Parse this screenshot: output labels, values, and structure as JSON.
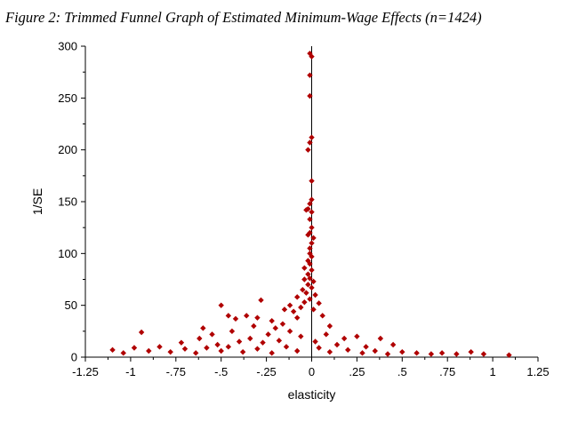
{
  "chart_data": {
    "type": "scatter",
    "title": "Figure 2: Trimmed Funnel Graph of Estimated Minimum-Wage Effects (n=1424)",
    "xlabel": "elasticity",
    "ylabel": "1/SE",
    "xlim": [
      -1.25,
      1.25
    ],
    "ylim": [
      0,
      300
    ],
    "x_ticks": [
      -1.25,
      -1,
      -0.75,
      -0.5,
      -0.25,
      0,
      0.25,
      0.5,
      0.75,
      1,
      1.25
    ],
    "x_tick_labels": [
      "-1.25",
      "-1",
      "-.75",
      "-.5",
      "-.25",
      "0",
      ".25",
      ".5",
      ".75",
      "1",
      "1.25"
    ],
    "y_ticks": [
      0,
      50,
      100,
      150,
      200,
      250,
      300
    ],
    "y_tick_labels": [
      "0",
      "50",
      "100",
      "150",
      "200",
      "250",
      "300"
    ],
    "reference_line_x": 0,
    "marker": "diamond",
    "color": "#b00000",
    "grid": false,
    "legend": "none",
    "points": [
      [
        -0.01,
        293
      ],
      [
        0.0,
        290
      ],
      [
        -0.01,
        272
      ],
      [
        -0.01,
        252
      ],
      [
        0.0,
        212
      ],
      [
        -0.01,
        207
      ],
      [
        -0.02,
        200
      ],
      [
        0.0,
        170
      ],
      [
        0.0,
        152
      ],
      [
        -0.01,
        148
      ],
      [
        -0.02,
        143
      ],
      [
        0.0,
        140
      ],
      [
        -0.01,
        133
      ],
      [
        -0.03,
        142
      ],
      [
        0.0,
        125
      ],
      [
        -0.01,
        120
      ],
      [
        -0.02,
        118
      ],
      [
        0.01,
        115
      ],
      [
        0.0,
        110
      ],
      [
        -0.01,
        105
      ],
      [
        -0.01,
        100
      ],
      [
        0.0,
        97
      ],
      [
        -0.02,
        93
      ],
      [
        -0.01,
        90
      ],
      [
        -0.04,
        86
      ],
      [
        0.0,
        84
      ],
      [
        -0.02,
        80
      ],
      [
        -0.01,
        76
      ],
      [
        -0.04,
        75
      ],
      [
        0.01,
        73
      ],
      [
        -0.02,
        70
      ],
      [
        0.0,
        67
      ],
      [
        -0.05,
        65
      ],
      [
        -0.03,
        62
      ],
      [
        0.02,
        60
      ],
      [
        -0.08,
        58
      ],
      [
        -0.01,
        56
      ],
      [
        -0.04,
        53
      ],
      [
        0.04,
        52
      ],
      [
        -0.12,
        50
      ],
      [
        -0.06,
        48
      ],
      [
        0.01,
        46
      ],
      [
        -0.15,
        46
      ],
      [
        -0.28,
        55
      ],
      [
        -0.5,
        50
      ],
      [
        -0.46,
        40
      ],
      [
        -0.42,
        37
      ],
      [
        -0.36,
        40
      ],
      [
        -0.3,
        38
      ],
      [
        -0.22,
        35
      ],
      [
        -0.1,
        44
      ],
      [
        -0.2,
        28
      ],
      [
        -0.16,
        32
      ],
      [
        -0.08,
        38
      ],
      [
        0.06,
        40
      ],
      [
        0.1,
        30
      ],
      [
        -0.6,
        28
      ],
      [
        -0.55,
        22
      ],
      [
        -0.44,
        25
      ],
      [
        -0.32,
        30
      ],
      [
        -0.24,
        22
      ],
      [
        -0.12,
        25
      ],
      [
        0.08,
        22
      ],
      [
        0.18,
        18
      ],
      [
        0.25,
        20
      ],
      [
        0.38,
        18
      ],
      [
        -0.94,
        24
      ],
      [
        -0.72,
        14
      ],
      [
        -0.62,
        18
      ],
      [
        -0.52,
        12
      ],
      [
        -0.4,
        15
      ],
      [
        -0.34,
        18
      ],
      [
        -0.27,
        14
      ],
      [
        -0.18,
        16
      ],
      [
        -0.06,
        20
      ],
      [
        0.02,
        15
      ],
      [
        0.14,
        12
      ],
      [
        0.3,
        10
      ],
      [
        0.45,
        12
      ],
      [
        -1.1,
        7
      ],
      [
        -1.04,
        4
      ],
      [
        -0.98,
        9
      ],
      [
        -0.9,
        6
      ],
      [
        -0.84,
        10
      ],
      [
        -0.78,
        5
      ],
      [
        -0.7,
        8
      ],
      [
        -0.64,
        4
      ],
      [
        -0.58,
        9
      ],
      [
        -0.5,
        6
      ],
      [
        -0.46,
        10
      ],
      [
        -0.38,
        5
      ],
      [
        -0.3,
        8
      ],
      [
        -0.22,
        4
      ],
      [
        -0.14,
        10
      ],
      [
        -0.08,
        6
      ],
      [
        0.04,
        9
      ],
      [
        0.1,
        5
      ],
      [
        0.2,
        7
      ],
      [
        0.28,
        4
      ],
      [
        0.35,
        6
      ],
      [
        0.42,
        3
      ],
      [
        0.5,
        5
      ],
      [
        0.58,
        4
      ],
      [
        0.66,
        3
      ],
      [
        0.72,
        4
      ],
      [
        0.8,
        3
      ],
      [
        0.88,
        5
      ],
      [
        0.95,
        3
      ],
      [
        1.09,
        2
      ]
    ]
  }
}
